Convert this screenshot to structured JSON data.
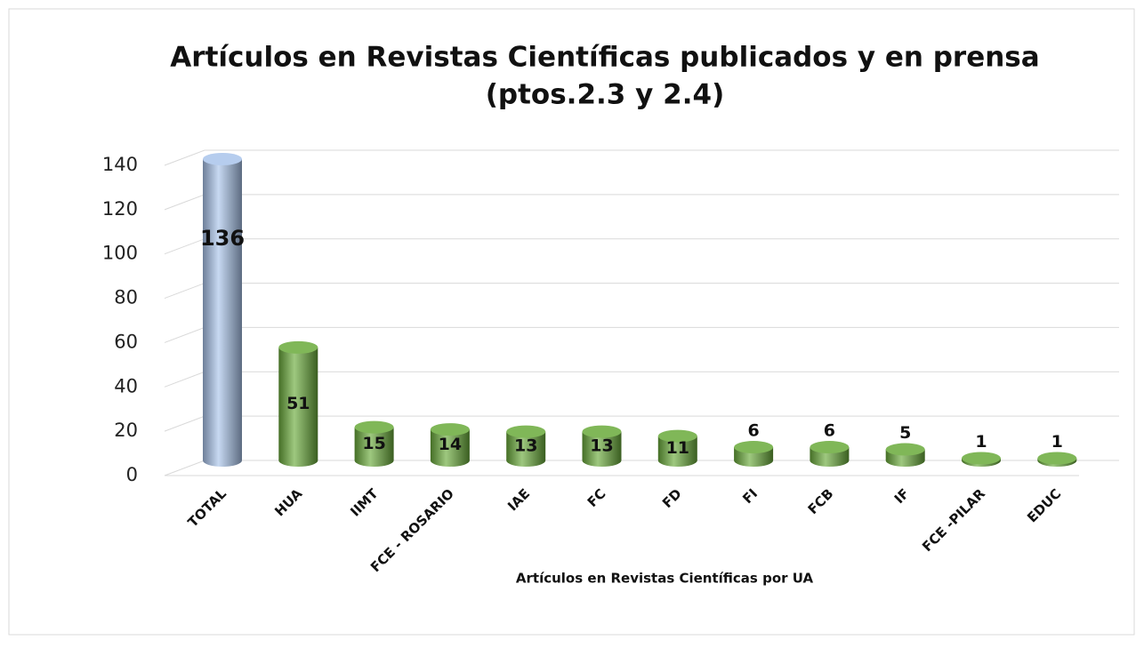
{
  "chart_data": {
    "type": "bar",
    "title": "Artículos en Revistas Científicas publicados y en prensa",
    "subtitle": "(ptos.2.3 y 2.4)",
    "x_label": "Artículos en Revistas Científicas por UA",
    "categories": [
      "TOTAL",
      "HUA",
      "IIMT",
      "FCE - ROSARIO",
      "IAE",
      "FC",
      "FD",
      "FI",
      "FCB",
      "IF",
      "FCE -PILAR",
      "EDUC"
    ],
    "values": [
      136,
      51,
      15,
      14,
      13,
      13,
      11,
      6,
      6,
      5,
      1,
      1
    ],
    "colors": [
      "#a9c4eb",
      "#6aaa3a",
      "#6aaa3a",
      "#6aaa3a",
      "#6aaa3a",
      "#6aaa3a",
      "#6aaa3a",
      "#6aaa3a",
      "#6aaa3a",
      "#6aaa3a",
      "#6aaa3a",
      "#6aaa3a"
    ],
    "ylim": [
      0,
      140
    ],
    "yticks": [
      0,
      20,
      40,
      60,
      80,
      100,
      120,
      140
    ],
    "grid": true
  }
}
